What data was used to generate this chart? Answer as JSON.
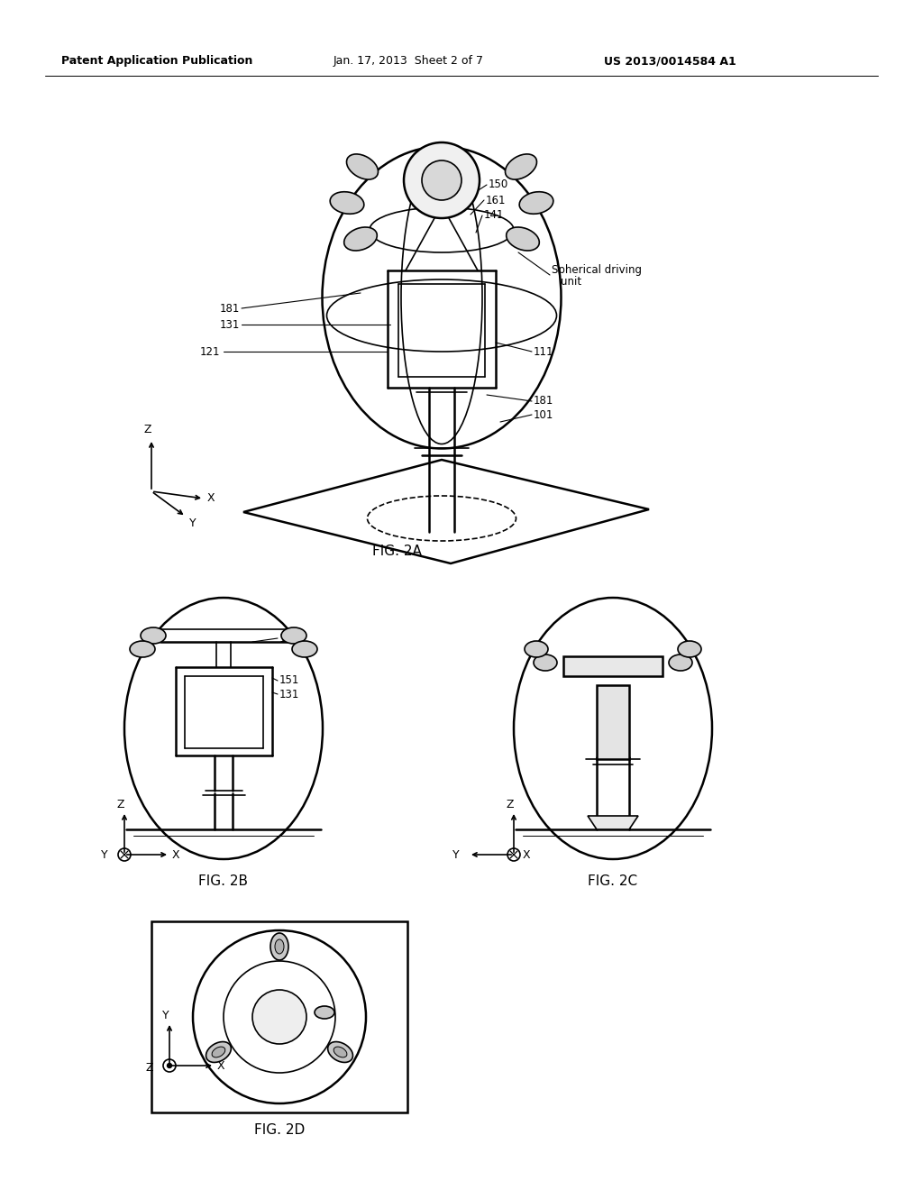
{
  "bg_color": "#ffffff",
  "header_left": "Patent Application Publication",
  "header_mid": "Jan. 17, 2013  Sheet 2 of 7",
  "header_right": "US 2013/0014584 A1",
  "fig2a_label": "FIG. 2A",
  "fig2b_label": "FIG. 2B",
  "fig2c_label": "FIG. 2C",
  "fig2d_label": "FIG. 2D",
  "line_color": "#000000",
  "text_color": "#000000",
  "lw_heavy": 1.8,
  "lw_medium": 1.2,
  "lw_light": 0.8
}
